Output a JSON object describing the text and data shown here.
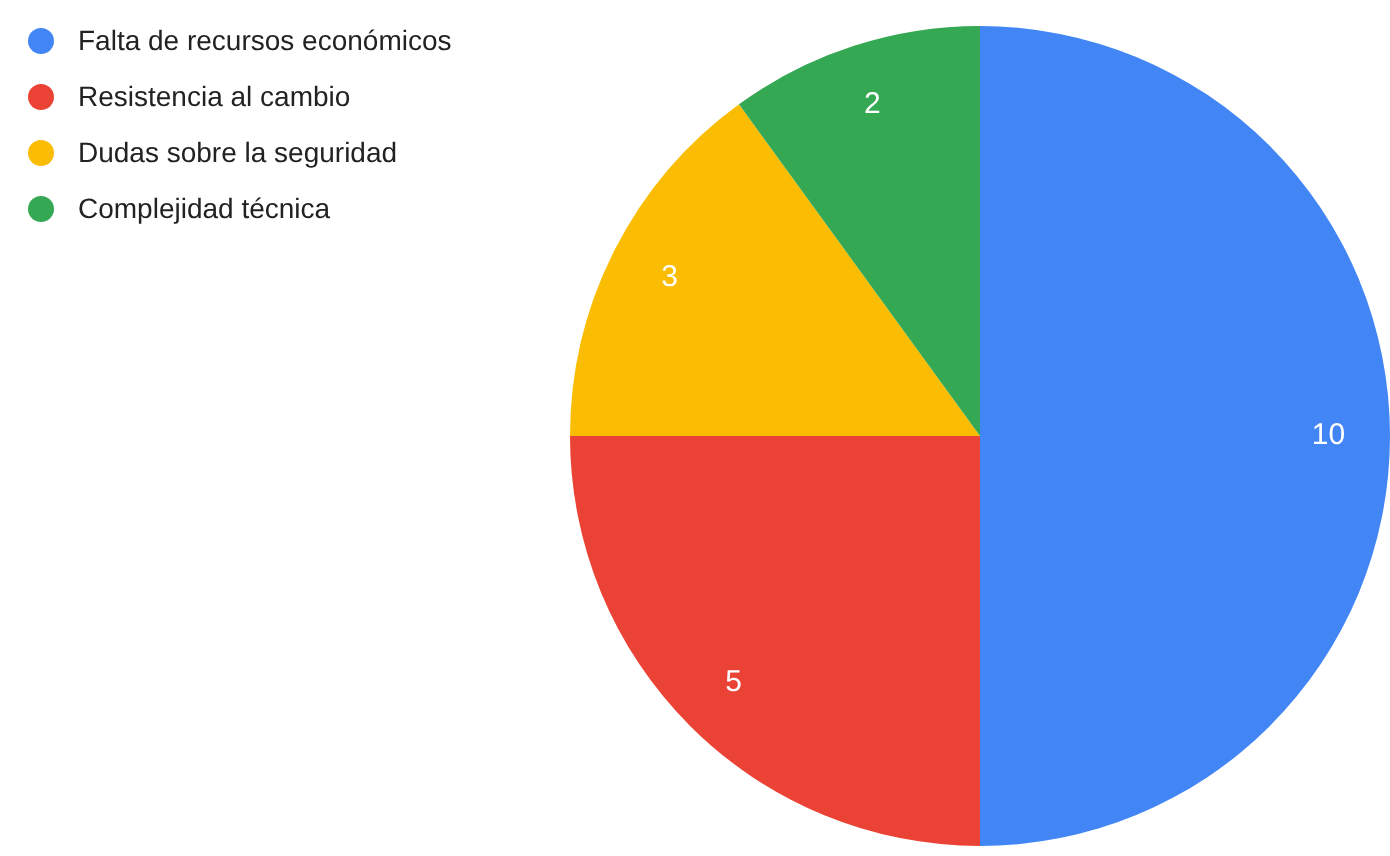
{
  "chart_data": {
    "type": "pie",
    "categories": [
      "Falta de recursos económicos",
      "Resistencia al cambio",
      "Dudas sobre la seguridad",
      "Complejidad técnica"
    ],
    "values": [
      10,
      5,
      3,
      2
    ],
    "colors": [
      "#4285f4",
      "#ea4335",
      "#fbbc04",
      "#34a853"
    ],
    "data_labels": true,
    "legend": "top left"
  }
}
